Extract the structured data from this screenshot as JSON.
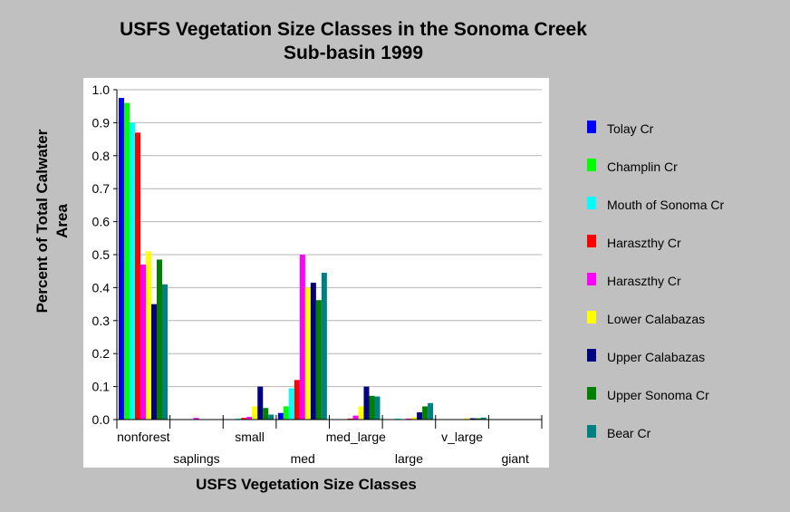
{
  "chart_data": {
    "type": "bar",
    "title_lines": [
      "USFS Vegetation Size Classes in the Sonoma Creek",
      "Sub-basin 1999"
    ],
    "xlabel": "USFS Vegetation Size Classes",
    "ylabel_lines": [
      "Percent of Total Calwater",
      "Area"
    ],
    "ylim": [
      0,
      1.0
    ],
    "yticks": [
      "0.0",
      "0.1",
      "0.2",
      "0.3",
      "0.4",
      "0.5",
      "0.6",
      "0.7",
      "0.8",
      "0.9",
      "1.0"
    ],
    "grid": true,
    "legend_position": "right",
    "categories": [
      "nonforest",
      "saplings",
      "small",
      "med",
      "med_large",
      "large",
      "v_large",
      "giant"
    ],
    "series": [
      {
        "name": "Tolay Cr",
        "color": "#0000ff",
        "values": [
          0.975,
          0.0,
          0.0,
          0.02,
          0.0,
          0.0,
          0.0,
          0.0
        ]
      },
      {
        "name": "Champlin Cr",
        "color": "#00ff00",
        "values": [
          0.96,
          0.0,
          0.0,
          0.04,
          0.0,
          0.0,
          0.0,
          0.0
        ]
      },
      {
        "name": "Mouth of Sonoma Cr",
        "color": "#00ffff",
        "values": [
          0.9,
          0.0,
          0.003,
          0.095,
          0.0,
          0.003,
          0.0,
          0.0
        ]
      },
      {
        "name": "Haraszthy Cr",
        "color": "#ff0000",
        "values": [
          0.87,
          0.0,
          0.005,
          0.12,
          0.003,
          0.0,
          0.0,
          0.0
        ]
      },
      {
        "name": "Haraszthy Cr",
        "color": "#ff00ff",
        "values": [
          0.47,
          0.005,
          0.008,
          0.5,
          0.012,
          0.003,
          0.0,
          0.0
        ]
      },
      {
        "name": "Lower Calabazas",
        "color": "#ffff00",
        "values": [
          0.51,
          0.0,
          0.04,
          0.4,
          0.04,
          0.007,
          0.004,
          0.0
        ]
      },
      {
        "name": "Upper Calabazas",
        "color": "#000080",
        "values": [
          0.35,
          0.0,
          0.1,
          0.415,
          0.1,
          0.022,
          0.004,
          0.0
        ]
      },
      {
        "name": "Upper Sonoma Cr",
        "color": "#008000",
        "values": [
          0.485,
          0.0,
          0.035,
          0.362,
          0.072,
          0.04,
          0.004,
          0.0
        ]
      },
      {
        "name": "Bear Cr",
        "color": "#008080",
        "values": [
          0.41,
          0.0,
          0.015,
          0.445,
          0.07,
          0.05,
          0.006,
          0.0
        ]
      }
    ]
  }
}
